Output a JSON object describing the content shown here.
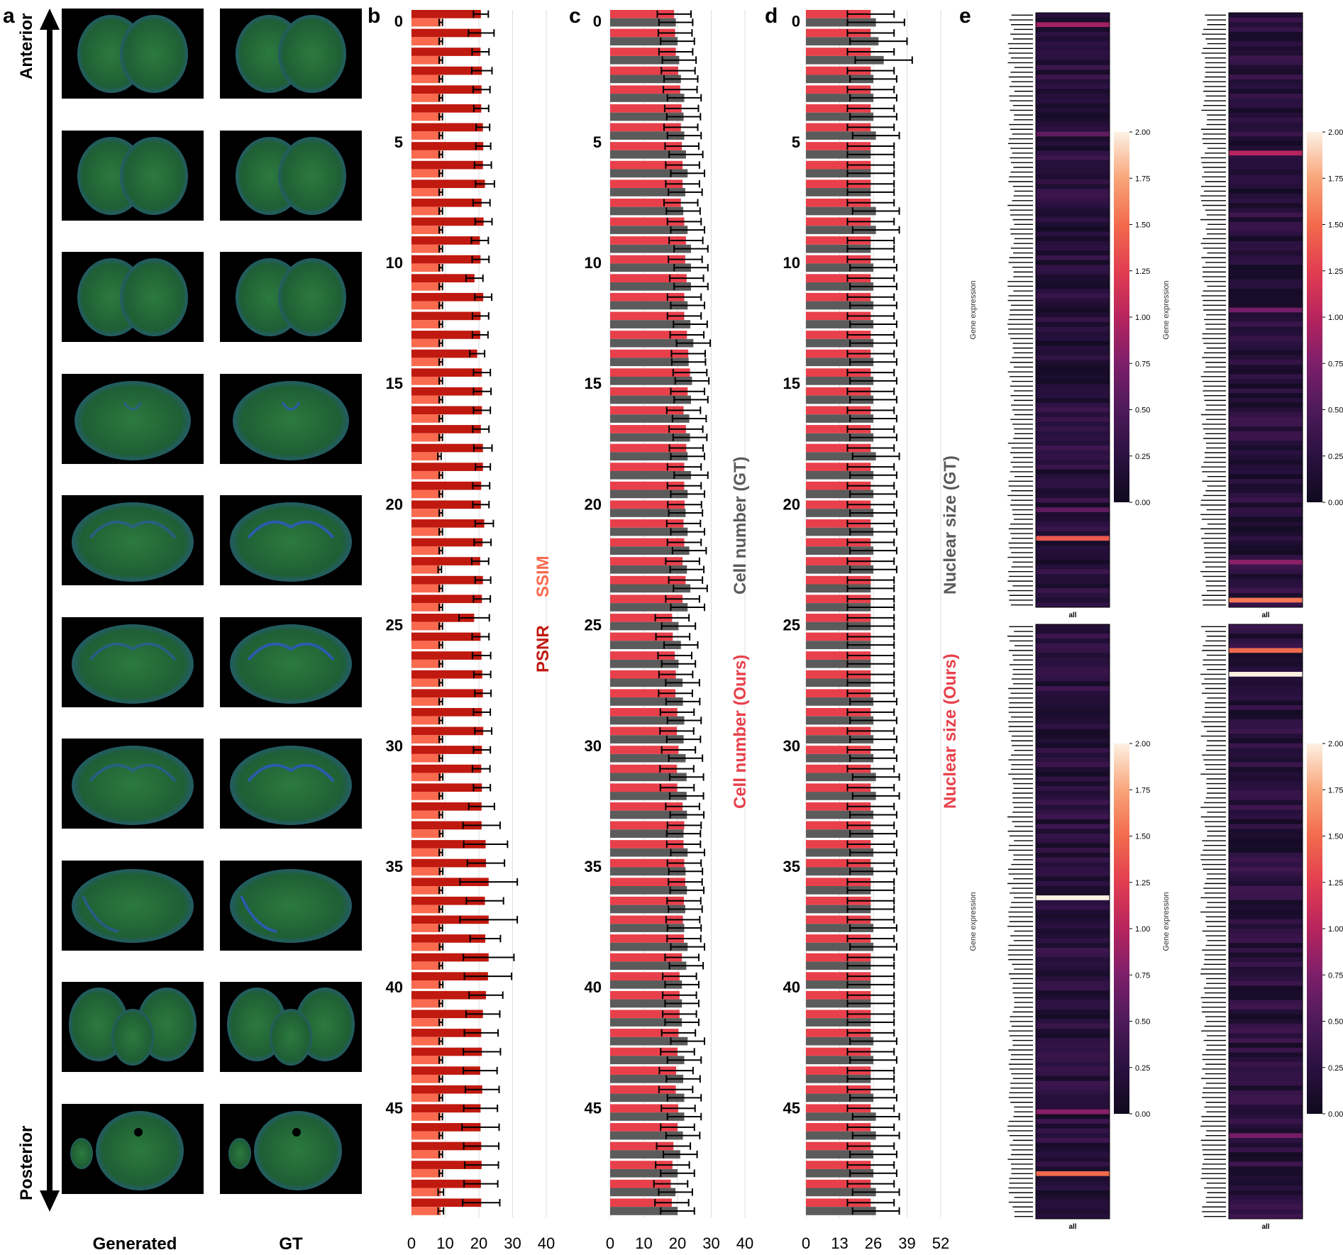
{
  "figure": {
    "panel_letters": [
      "a",
      "b",
      "c",
      "d",
      "e"
    ],
    "axis_arrow": {
      "top_label": "Anterior",
      "bottom_label": "Posterior"
    },
    "column_labels": {
      "generated": "Generated",
      "gt": "GT"
    },
    "legend_b": {
      "ssim": "SSIM",
      "psnr": "PSNR"
    },
    "legend_c": {
      "gt": "Cell number (GT)",
      "ours": "Cell number (Ours)"
    },
    "legend_d": {
      "gt": "Nuclear size (GT)",
      "ours": "Nuclear size (Ours)"
    },
    "colors": {
      "red": "#c0190f",
      "salmon": "#fa6a4f",
      "pink_red": "#e8404b",
      "gray": "#5b5b5b",
      "tissue_green": "#1f6b3a",
      "tissue_blue": "#2a5bbf"
    }
  },
  "images_a": {
    "rows": 10,
    "row_kinds": [
      "frontal",
      "frontal",
      "frontal",
      "mid",
      "hippo",
      "hippo",
      "hippo",
      "posterior",
      "cerebellum",
      "medulla"
    ]
  },
  "chart_data": [
    {
      "id": "b",
      "type": "bar",
      "orientation": "horizontal",
      "ytick_labels": [
        "0",
        "5",
        "10",
        "15",
        "20",
        "25",
        "30",
        "35",
        "40",
        "45"
      ],
      "xticks": [
        0,
        10,
        20,
        30,
        40
      ],
      "xlim": [
        0,
        40
      ],
      "series": [
        {
          "name": "PSNR",
          "color": "#c0190f",
          "values": [
            20.6,
            20.7,
            20.5,
            20.9,
            20.8,
            20.7,
            21.2,
            21.3,
            21.2,
            21.8,
            20.8,
            21.4,
            20.3,
            20.5,
            18.7,
            21.3,
            20.5,
            20.4,
            19.5,
            20.9,
            21.0,
            20.9,
            20.6,
            21.2,
            21.2,
            20.7,
            20.6,
            21.6,
            21.1,
            20.4,
            21.2,
            20.9,
            18.6,
            20.5,
            20.8,
            21.0,
            21.2,
            20.9,
            21.3,
            20.9,
            20.7,
            20.9,
            20.8,
            20.8,
            22.0,
            22.1,
            22.9,
            21.8,
            22.9,
            21.9,
            22.9,
            22.7,
            22.1,
            21.2,
            20.7,
            20.9,
            20.4,
            21.0,
            20.5,
            20.5,
            20.7,
            20.8,
            20.6,
            20.7
          ],
          "err": [
            2.2,
            3.8,
            2.5,
            3.0,
            2.5,
            2.2,
            2.0,
            2.2,
            2.5,
            2.8,
            2.5,
            2.5,
            2.5,
            2.5,
            2.5,
            2.5,
            2.4,
            2.3,
            2.2,
            2.5,
            2.6,
            2.5,
            2.4,
            2.7,
            2.2,
            2.5,
            2.4,
            2.7,
            2.5,
            2.5,
            2.3,
            2.5,
            4.5,
            2.5,
            2.7,
            2.5,
            2.4,
            2.5,
            2.5,
            2.5,
            2.6,
            2.5,
            3.8,
            5.5,
            6.5,
            5.5,
            8.5,
            5.5,
            8.5,
            4.5,
            7.5,
            7.0,
            5.0,
            5.0,
            5.0,
            5.5,
            5.0,
            5.0,
            5.0,
            5.5,
            5.2,
            5.0,
            5.0,
            5.5
          ]
        },
        {
          "name": "SSIM",
          "color": "#fa6a4f",
          "values": [
            8.7,
            8.7,
            8.7,
            8.7,
            8.7,
            8.7,
            8.7,
            8.7,
            8.7,
            8.7,
            8.7,
            8.7,
            8.7,
            8.7,
            8.7,
            8.7,
            8.7,
            8.7,
            8.7,
            8.7,
            8.7,
            8.7,
            8.7,
            8.3,
            8.7,
            8.7,
            8.7,
            8.7,
            8.7,
            8.4,
            8.7,
            8.7,
            8.7,
            8.7,
            8.7,
            8.7,
            8.7,
            8.7,
            8.7,
            8.7,
            8.8,
            8.7,
            8.7,
            8.8,
            8.7,
            8.8,
            8.7,
            8.7,
            8.7,
            8.8,
            8.7,
            8.8,
            8.7,
            8.7,
            8.7,
            8.7,
            8.7,
            8.7,
            8.7,
            8.7,
            8.7,
            8.7,
            8.7,
            8.7
          ],
          "err": [
            0.5,
            0.5,
            0.5,
            0.5,
            0.5,
            0.5,
            0.5,
            0.5,
            0.5,
            0.5,
            0.5,
            0.5,
            0.5,
            0.5,
            0.5,
            0.5,
            0.5,
            0.5,
            0.5,
            0.5,
            0.5,
            0.5,
            0.5,
            0.5,
            0.5,
            0.5,
            0.5,
            0.5,
            0.5,
            0.5,
            0.5,
            0.5,
            0.5,
            0.5,
            0.5,
            0.5,
            0.5,
            0.5,
            0.5,
            0.5,
            0.5,
            0.5,
            0.5,
            0.5,
            0.5,
            0.5,
            0.5,
            0.5,
            0.5,
            0.5,
            0.5,
            0.5,
            0.5,
            0.5,
            0.5,
            0.5,
            0.5,
            0.5,
            0.5,
            0.5,
            0.5,
            0.5,
            0.8,
            0.8
          ]
        }
      ]
    },
    {
      "id": "c",
      "type": "bar",
      "orientation": "horizontal",
      "ytick_labels": [
        "0",
        "5",
        "10",
        "15",
        "20",
        "25",
        "30",
        "35",
        "40",
        "45"
      ],
      "xticks": [
        0,
        10,
        20,
        30,
        40
      ],
      "xlim": [
        0,
        40
      ],
      "series": [
        {
          "name": "Cell number (Ours)",
          "color": "#e8404b",
          "values": [
            19.0,
            19.3,
            19.5,
            20.2,
            20.8,
            21.2,
            21.0,
            21.3,
            21.5,
            21.5,
            21.0,
            22.0,
            22.5,
            22.3,
            22.7,
            22.0,
            22.0,
            22.8,
            23.2,
            23.7,
            23.0,
            21.8,
            22.5,
            22.6,
            22.0,
            22.0,
            22.1,
            21.8,
            22.0,
            21.5,
            22.4,
            21.5,
            18.4,
            18.6,
            19.2,
            19.5,
            19.4,
            19.9,
            19.8,
            20.3,
            19.8,
            19.9,
            21.5,
            22.0,
            21.8,
            22.0,
            22.3,
            21.9,
            21.6,
            21.9,
            21.3,
            20.6,
            20.6,
            20.6,
            20.3,
            20.0,
            19.6,
            19.5,
            20.2,
            20.0,
            18.8,
            18.5,
            18.0,
            18.3
          ],
          "err": [
            5,
            5,
            5,
            5,
            5,
            5,
            5,
            5,
            5,
            5,
            5,
            5,
            5,
            5,
            5,
            5,
            5,
            5,
            5,
            5,
            5,
            5,
            5,
            5,
            5,
            5,
            5,
            5,
            5,
            5,
            5,
            5,
            5,
            5,
            5,
            5,
            5,
            5,
            5,
            5,
            5,
            5,
            5,
            5,
            5,
            5,
            5,
            5,
            5,
            5,
            5,
            5,
            5,
            5,
            5,
            5,
            5,
            5,
            5,
            5,
            5,
            5,
            5,
            5
          ]
        },
        {
          "name": "Cell number (GT)",
          "color": "#5b5b5b",
          "values": [
            19.5,
            20.0,
            20.5,
            21.0,
            22.0,
            21.8,
            22.0,
            22.5,
            23.0,
            22.3,
            21.7,
            23.0,
            24.0,
            24.0,
            24.0,
            23.0,
            23.8,
            24.7,
            23.3,
            24.3,
            24.0,
            23.5,
            23.7,
            23.0,
            24.0,
            23.0,
            22.4,
            23.0,
            23.5,
            22.8,
            23.8,
            23.0,
            20.3,
            21.0,
            20.3,
            21.5,
            21.6,
            22.0,
            21.8,
            22.4,
            22.7,
            22.7,
            22.8,
            21.8,
            23.0,
            22.4,
            22.8,
            22.3,
            22.0,
            23.0,
            22.6,
            21.3,
            21.3,
            21.3,
            23.0,
            22.0,
            21.7,
            22.0,
            22.0,
            21.6,
            20.8,
            20.0,
            19.4,
            20.0
          ],
          "err": [
            5,
            5,
            5,
            5,
            5,
            5,
            5,
            5,
            5,
            5,
            5,
            5,
            5,
            5,
            5,
            5,
            5,
            5,
            5,
            5,
            5,
            5,
            5,
            5,
            5,
            5,
            5,
            5,
            5,
            5,
            5,
            5,
            5,
            5,
            5,
            5,
            5,
            5,
            5,
            5,
            5,
            5,
            5,
            5,
            5,
            5,
            5,
            5,
            5,
            5,
            5,
            5,
            5,
            5,
            5,
            5,
            5,
            5,
            5,
            5,
            5,
            5,
            5,
            5
          ]
        }
      ]
    },
    {
      "id": "d",
      "type": "bar",
      "orientation": "horizontal",
      "ytick_labels": [
        "0",
        "5",
        "10",
        "15",
        "20",
        "25",
        "30",
        "35",
        "40",
        "45"
      ],
      "xticks": [
        0,
        13,
        26,
        39,
        52
      ],
      "xtick_labels": [
        "0",
        "13",
        "26",
        "39",
        "52"
      ],
      "xlim": [
        0,
        52
      ],
      "series": [
        {
          "name": "Nuclear size (Ours)",
          "color": "#e8404b",
          "values": [
            25,
            25,
            25,
            25,
            25,
            25,
            25,
            25,
            25,
            25,
            25,
            25,
            25,
            25,
            25,
            25,
            25,
            25,
            25,
            25,
            25,
            25,
            25,
            25,
            25,
            25,
            25,
            25,
            25,
            25,
            25,
            25,
            25,
            25,
            25,
            25,
            25,
            25,
            25,
            25,
            25,
            25,
            25,
            25,
            25,
            25,
            25,
            25,
            25,
            25,
            25,
            25,
            25,
            25,
            25,
            25,
            25,
            25,
            25,
            25,
            25,
            25,
            25,
            25
          ],
          "err": [
            9,
            9,
            9,
            9,
            9,
            9,
            9,
            9,
            9,
            9,
            9,
            9,
            9,
            9,
            9,
            9,
            9,
            9,
            9,
            9,
            9,
            9,
            9,
            9,
            9,
            9,
            9,
            9,
            9,
            9,
            9,
            9,
            9,
            9,
            9,
            9,
            9,
            9,
            9,
            9,
            9,
            9,
            9,
            9,
            9,
            9,
            9,
            9,
            9,
            9,
            9,
            9,
            9,
            9,
            9,
            9,
            9,
            9,
            9,
            9,
            9,
            9,
            9,
            9
          ]
        },
        {
          "name": "Nuclear size (GT)",
          "color": "#5b5b5b",
          "values": [
            27,
            28,
            30,
            26,
            26,
            26,
            27,
            25,
            25,
            25,
            27,
            27,
            25,
            26,
            26,
            26,
            26,
            26,
            26,
            26,
            26,
            26,
            26,
            27,
            26,
            26,
            26,
            26,
            26,
            26,
            25,
            25,
            25,
            25,
            25,
            25,
            26,
            26,
            26,
            26,
            27,
            27,
            26,
            26,
            26,
            26,
            25,
            25,
            26,
            26,
            25,
            25,
            25,
            25,
            26,
            26,
            25,
            26,
            27,
            27,
            26,
            26,
            27,
            27
          ],
          "err": [
            11,
            11,
            11,
            9,
            9,
            9,
            9,
            9,
            9,
            9,
            9,
            9,
            9,
            9,
            9,
            9,
            9,
            9,
            9,
            9,
            9,
            9,
            9,
            9,
            9,
            9,
            9,
            9,
            9,
            9,
            9,
            9,
            9,
            9,
            9,
            9,
            9,
            9,
            9,
            9,
            9,
            9,
            9,
            9,
            9,
            9,
            9,
            9,
            9,
            9,
            9,
            9,
            9,
            9,
            9,
            9,
            9,
            9,
            9,
            9,
            9,
            9,
            9,
            9
          ]
        }
      ]
    },
    {
      "id": "e",
      "type": "heatmap",
      "colorbar_ticks": [
        "0.00",
        "0.25",
        "0.50",
        "0.75",
        "1.00",
        "1.25",
        "1.50",
        "1.75",
        "2.00"
      ],
      "ylabel": "Gene expression",
      "xlabel": "all",
      "subplots": 4
    }
  ]
}
